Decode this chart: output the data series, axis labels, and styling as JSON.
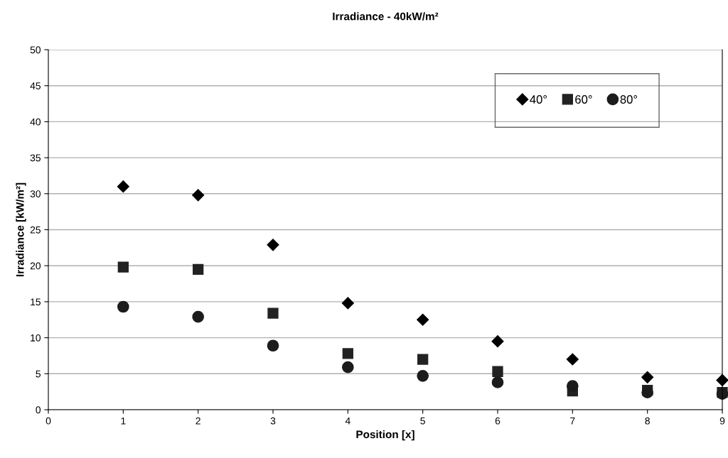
{
  "chart_data": {
    "type": "scatter",
    "title": "Irradiance - 40kW/m²",
    "xlabel": "Position [x]",
    "ylabel": "Irradiance [kW/m²]",
    "x": [
      1,
      2,
      3,
      4,
      5,
      6,
      7,
      8,
      9
    ],
    "series": [
      {
        "name": "40°",
        "color": "#000000",
        "marker": "diamond",
        "values": [
          31.0,
          29.8,
          22.9,
          14.8,
          12.5,
          9.5,
          7.0,
          4.5,
          4.1
        ]
      },
      {
        "name": "60°",
        "color": "#222222",
        "marker": "square",
        "values": [
          19.8,
          19.5,
          13.4,
          7.8,
          7.0,
          5.3,
          2.6,
          2.7,
          2.4
        ]
      },
      {
        "name": "80°",
        "color": "#1c1c1c",
        "marker": "circle",
        "values": [
          14.3,
          12.9,
          8.9,
          5.9,
          4.7,
          3.8,
          3.3,
          2.4,
          2.2
        ]
      }
    ],
    "xlim": [
      0,
      9
    ],
    "xticks": [
      0,
      1,
      2,
      3,
      4,
      5,
      6,
      7,
      8,
      9
    ],
    "ylim": [
      0,
      50
    ],
    "yticks": [
      0,
      5,
      10,
      15,
      20,
      25,
      30,
      35,
      40,
      45,
      50
    ],
    "grid": "y",
    "legend": "top right"
  }
}
